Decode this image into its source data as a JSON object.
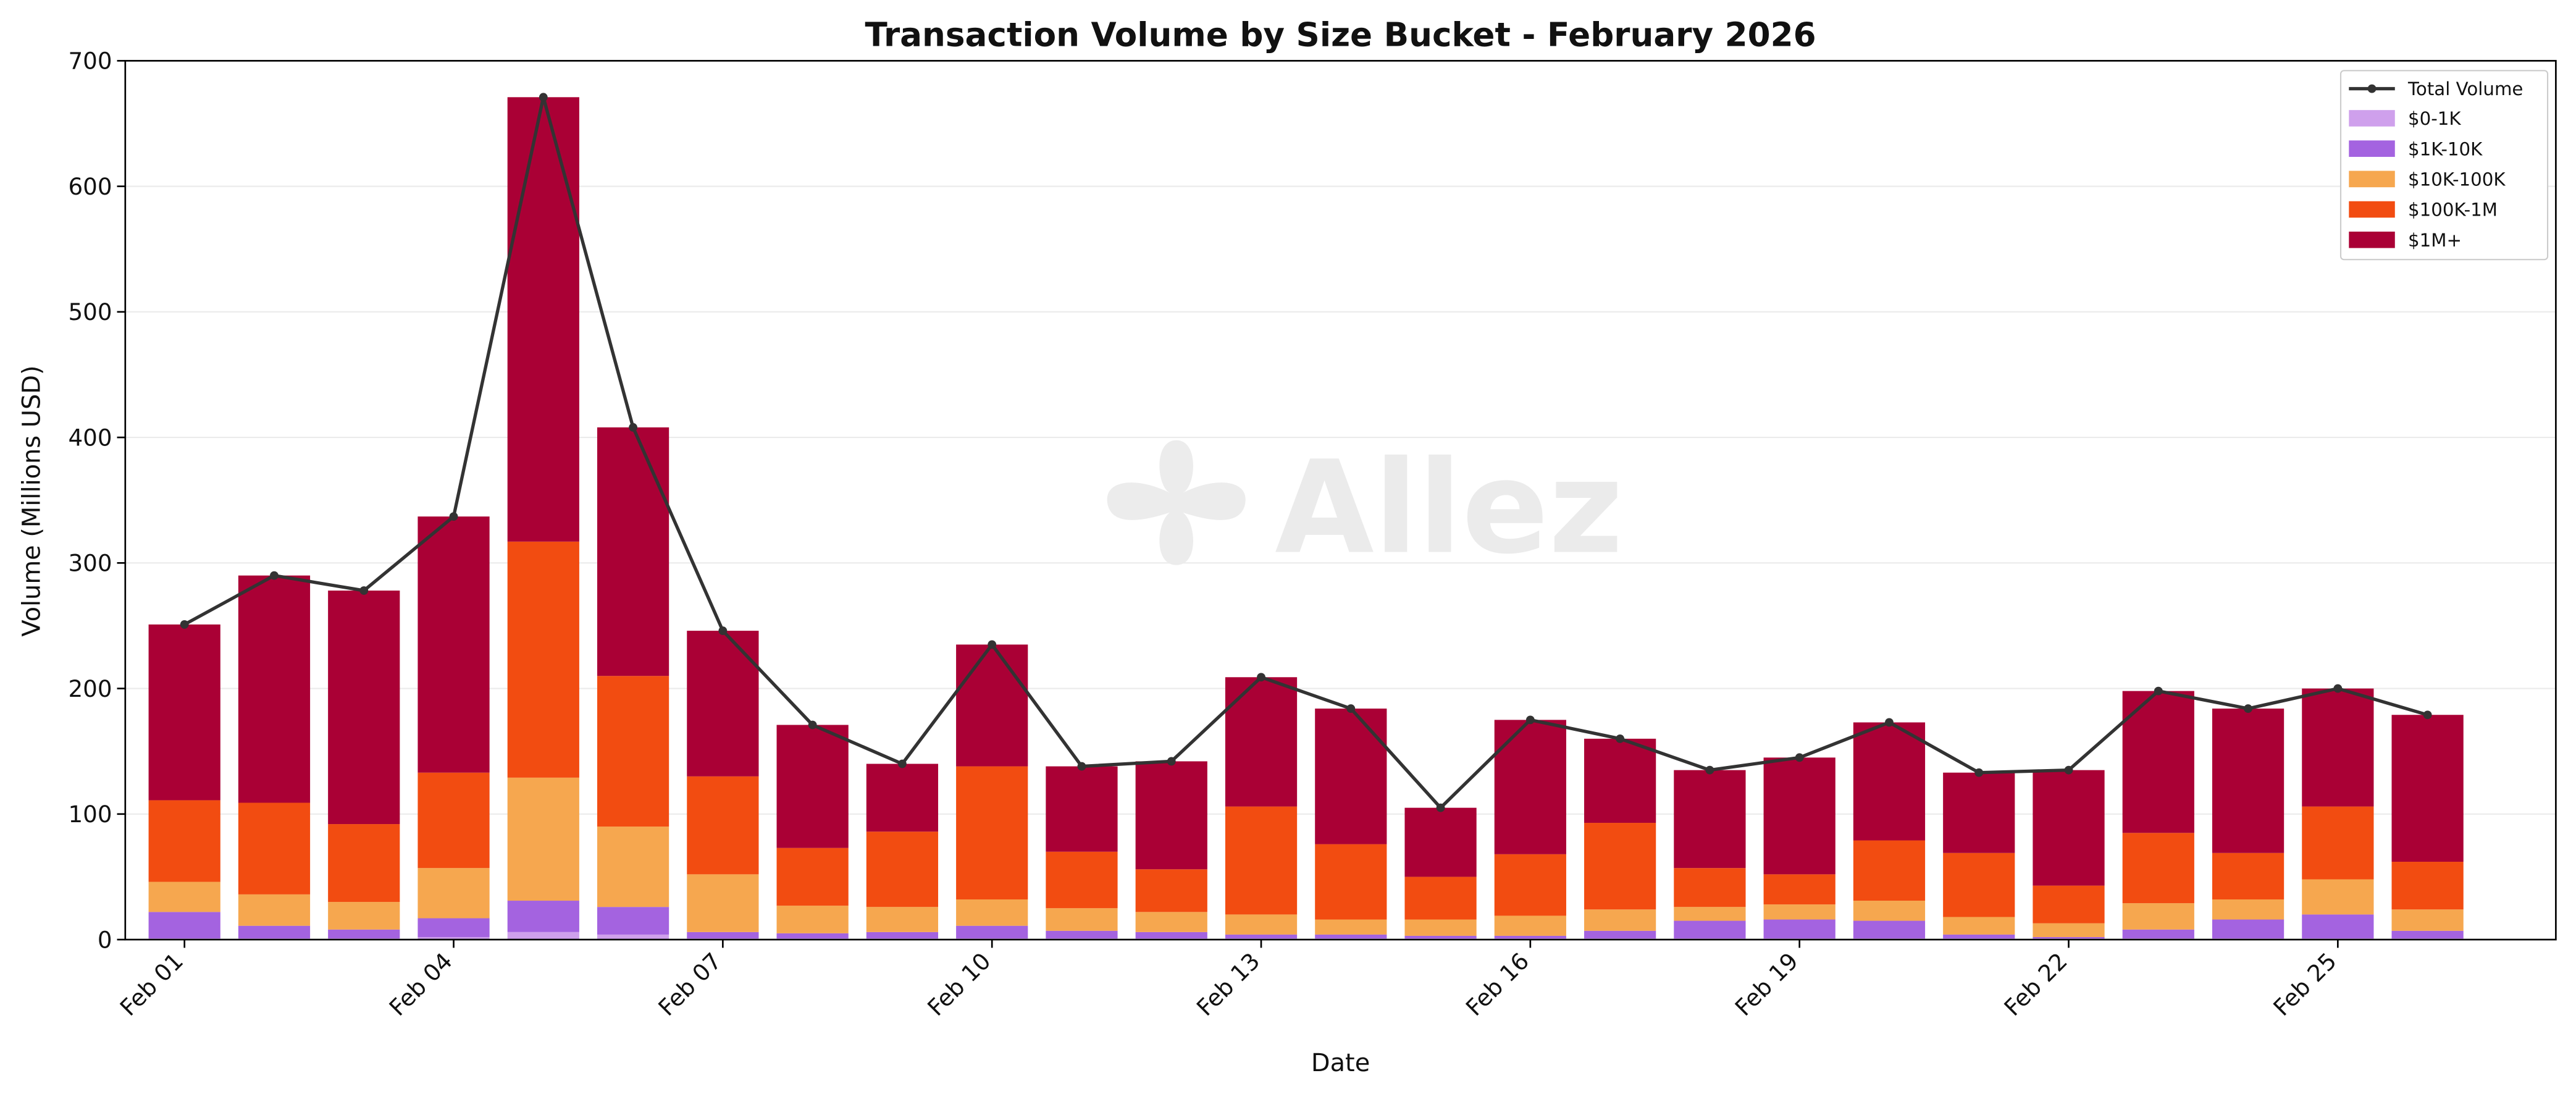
{
  "chart_data": {
    "type": "bar",
    "stacked": true,
    "title": "Transaction Volume by Size Bucket - February 2026",
    "xlabel": "Date",
    "ylabel": "Volume (Millions USD)",
    "ylim": [
      0,
      700
    ],
    "yticks": [
      0,
      100,
      200,
      300,
      400,
      500,
      600,
      700
    ],
    "grid": true,
    "legend_position": "top-right",
    "watermark": "Allez",
    "categories": [
      "Feb 01",
      "Feb 02",
      "Feb 03",
      "Feb 04",
      "Feb 05",
      "Feb 06",
      "Feb 07",
      "Feb 08",
      "Feb 09",
      "Feb 10",
      "Feb 11",
      "Feb 12",
      "Feb 13",
      "Feb 14",
      "Feb 15",
      "Feb 16",
      "Feb 17",
      "Feb 18",
      "Feb 19",
      "Feb 20",
      "Feb 21",
      "Feb 22",
      "Feb 23",
      "Feb 24",
      "Feb 25",
      "Feb 26"
    ],
    "xtick_labels": [
      "Feb 01",
      "Feb 04",
      "Feb 07",
      "Feb 10",
      "Feb 13",
      "Feb 16",
      "Feb 19",
      "Feb 22",
      "Feb 25"
    ],
    "xtick_indices": [
      0,
      3,
      6,
      9,
      12,
      15,
      18,
      21,
      24
    ],
    "series": [
      {
        "name": "$0-1K",
        "color": "#cfa0ec",
        "values": [
          1,
          1,
          1,
          2,
          6,
          4,
          1,
          1,
          1,
          1,
          1,
          1,
          1,
          1,
          1,
          1,
          1,
          1,
          1,
          1,
          1,
          1,
          1,
          1,
          1,
          1
        ]
      },
      {
        "name": "$1K-10K",
        "color": "#a463e0",
        "values": [
          21,
          10,
          7,
          15,
          25,
          22,
          5,
          4,
          5,
          10,
          6,
          5,
          3,
          3,
          2,
          2,
          6,
          14,
          15,
          14,
          3,
          1,
          7,
          15,
          19,
          6
        ]
      },
      {
        "name": "$10K-100K",
        "color": "#f6a74f",
        "values": [
          24,
          25,
          22,
          40,
          98,
          64,
          46,
          22,
          20,
          21,
          18,
          16,
          16,
          12,
          13,
          16,
          17,
          11,
          12,
          16,
          14,
          11,
          21,
          16,
          28,
          17
        ]
      },
      {
        "name": "$100K-1M",
        "color": "#f24c11",
        "values": [
          65,
          73,
          62,
          76,
          188,
          120,
          78,
          46,
          60,
          106,
          45,
          34,
          86,
          60,
          34,
          49,
          69,
          31,
          24,
          48,
          51,
          30,
          56,
          37,
          58,
          38
        ]
      },
      {
        "name": "$1M+",
        "color": "#aa0035",
        "values": [
          140,
          181,
          186,
          204,
          354,
          198,
          116,
          98,
          54,
          97,
          68,
          86,
          103,
          108,
          55,
          107,
          67,
          78,
          93,
          94,
          64,
          92,
          113,
          115,
          94,
          117
        ]
      }
    ],
    "line": {
      "name": "Total Volume",
      "color": "#333333",
      "values": [
        251,
        290,
        278,
        337,
        671,
        408,
        246,
        171,
        140,
        235,
        138,
        142,
        209,
        184,
        105,
        175,
        160,
        135,
        145,
        173,
        133,
        135,
        198,
        184,
        200,
        179
      ]
    }
  }
}
